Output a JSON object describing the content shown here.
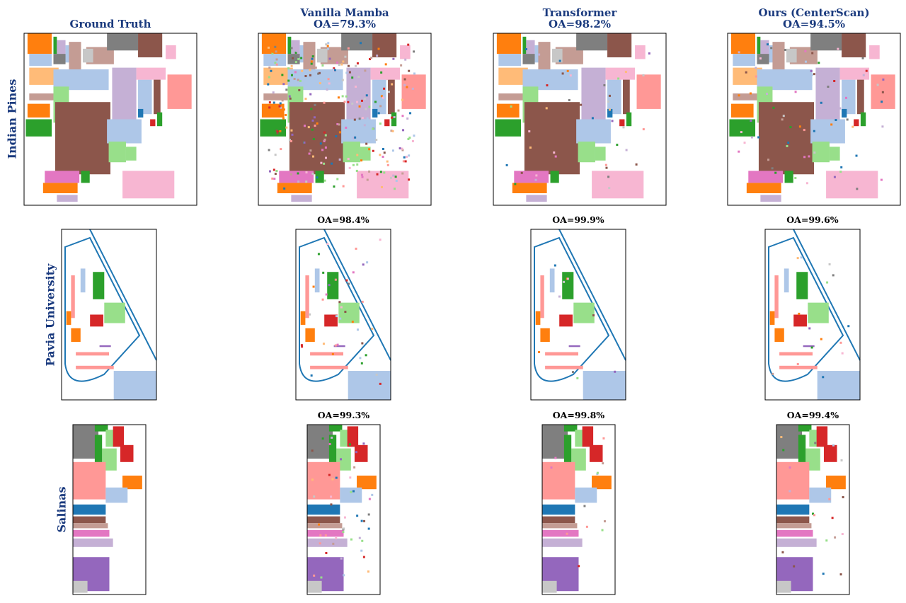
{
  "columns": [
    "Ground Truth",
    "Vanilla Mamba",
    "Transformer",
    "Ours (CenterScan)"
  ],
  "rows": [
    {
      "label": "Indian Pines",
      "scores": [
        "OA=79.3%",
        "OA=98.2%",
        "OA=94.5%"
      ]
    },
    {
      "label": "Pavia University",
      "scores": [
        "OA=98.4%",
        "OA=99.9%",
        "OA=99.6%"
      ]
    },
    {
      "label": "Salinas",
      "scores": [
        "OA=99.3%",
        "OA=99.8%",
        "OA=99.4%"
      ]
    }
  ]
}
